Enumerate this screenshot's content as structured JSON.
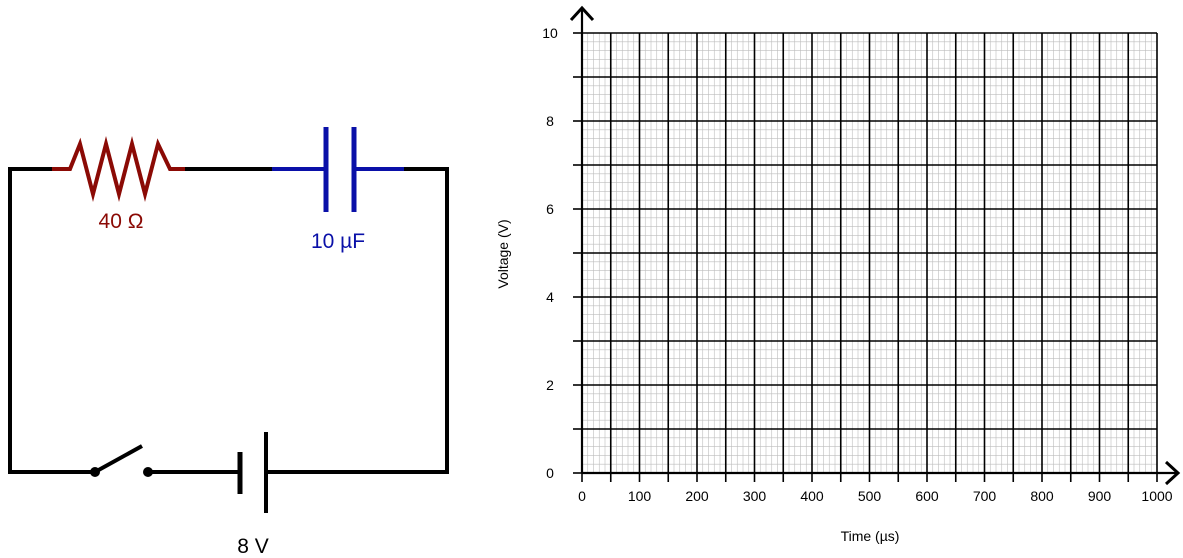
{
  "circuit": {
    "resistor_label": "40 Ω",
    "capacitor_label": "10 µF",
    "battery_label": "8 V",
    "colors": {
      "wire": "#000000",
      "resistor": "#8b0a05",
      "capacitor": "#0a10a8"
    }
  },
  "chart_data": {
    "type": "line",
    "title": "",
    "xlabel": "Time (µs)",
    "ylabel": "Voltage (V)",
    "xlim": [
      0,
      1000
    ],
    "ylim": [
      0,
      10
    ],
    "x_ticks": [
      "0",
      "100",
      "200",
      "300",
      "400",
      "500",
      "600",
      "700",
      "800",
      "900",
      "1000"
    ],
    "y_ticks": [
      "0",
      "2",
      "4",
      "6",
      "8",
      "10"
    ],
    "grid": true,
    "series": [],
    "colors": {
      "major_grid": "#000000",
      "minor_grid": "#bdbdbd",
      "axis": "#000000"
    }
  }
}
